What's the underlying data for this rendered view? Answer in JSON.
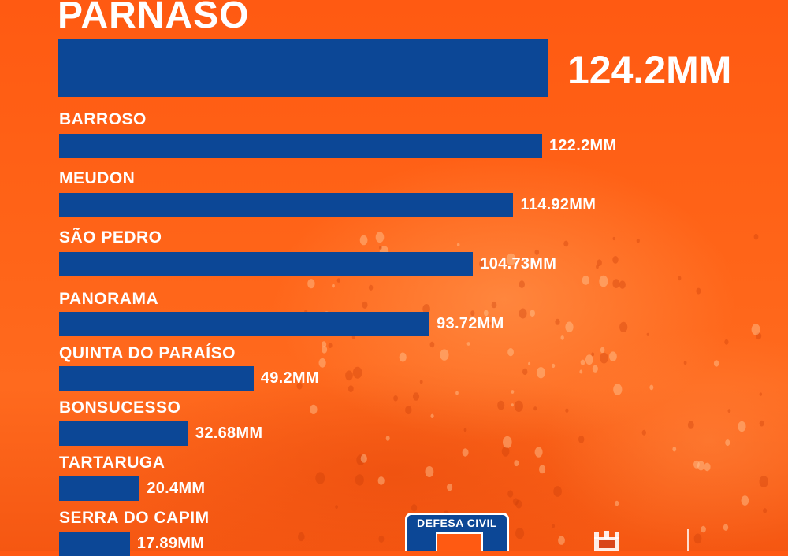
{
  "chart_data": {
    "type": "bar",
    "title": "",
    "xlabel": "",
    "ylabel": "",
    "xlim": [
      0,
      124.2
    ],
    "categories": [
      "PARNASO",
      "BARROSO",
      "MEUDON",
      "SÃO PEDRO",
      "PANORAMA",
      "QUINTA DO PARAÍSO",
      "BONSUCESSO",
      "TARTARUGA",
      "SERRA DO CAPIM"
    ],
    "values": [
      124.2,
      122.2,
      114.92,
      104.73,
      93.72,
      49.2,
      32.68,
      20.4,
      17.89
    ],
    "value_labels": [
      "124.2MM",
      "122.2MM",
      "114.92MM",
      "104.73MM",
      "93.72MM",
      "49.2MM",
      "32.68MM",
      "20.4MM",
      "17.89MM"
    ],
    "colors": {
      "bar": "#0c4796",
      "background": "#ff5a12",
      "text": "#ffffff"
    }
  },
  "footer": {
    "logo_text": "DEFESA CIVIL"
  }
}
